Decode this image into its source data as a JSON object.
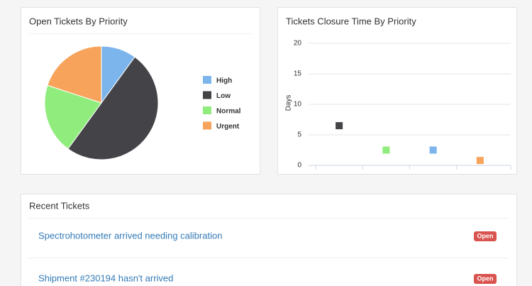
{
  "chart_data": [
    {
      "type": "pie",
      "title": "Open Tickets By Priority",
      "categories": [
        "High",
        "Low",
        "Normal",
        "Urgent"
      ],
      "values": [
        10,
        50,
        20,
        20
      ],
      "colors": [
        "#7cb5ec",
        "#434348",
        "#90ed7d",
        "#f7a35c"
      ],
      "legend": "right"
    },
    {
      "type": "scatter",
      "title": "Tickets Closure Time By Priority",
      "y_label": "Days",
      "categories": [
        null,
        null,
        null,
        null
      ],
      "values": [
        6.5,
        2.5,
        2.5,
        0.8
      ],
      "colors": [
        "#434348",
        "#90ed7d",
        "#7cb5ec",
        "#f7a35c"
      ],
      "ylim": [
        0,
        20
      ],
      "yticks": [
        0,
        5,
        10,
        15,
        20
      ],
      "grid": true
    }
  ],
  "recent": {
    "title": "Recent Tickets",
    "tickets": [
      {
        "subject": "Spectrohotometer arrived needing calibration",
        "status": "Open"
      },
      {
        "subject": "Shipment #230194 hasn't arrived",
        "status": "Open"
      }
    ]
  }
}
